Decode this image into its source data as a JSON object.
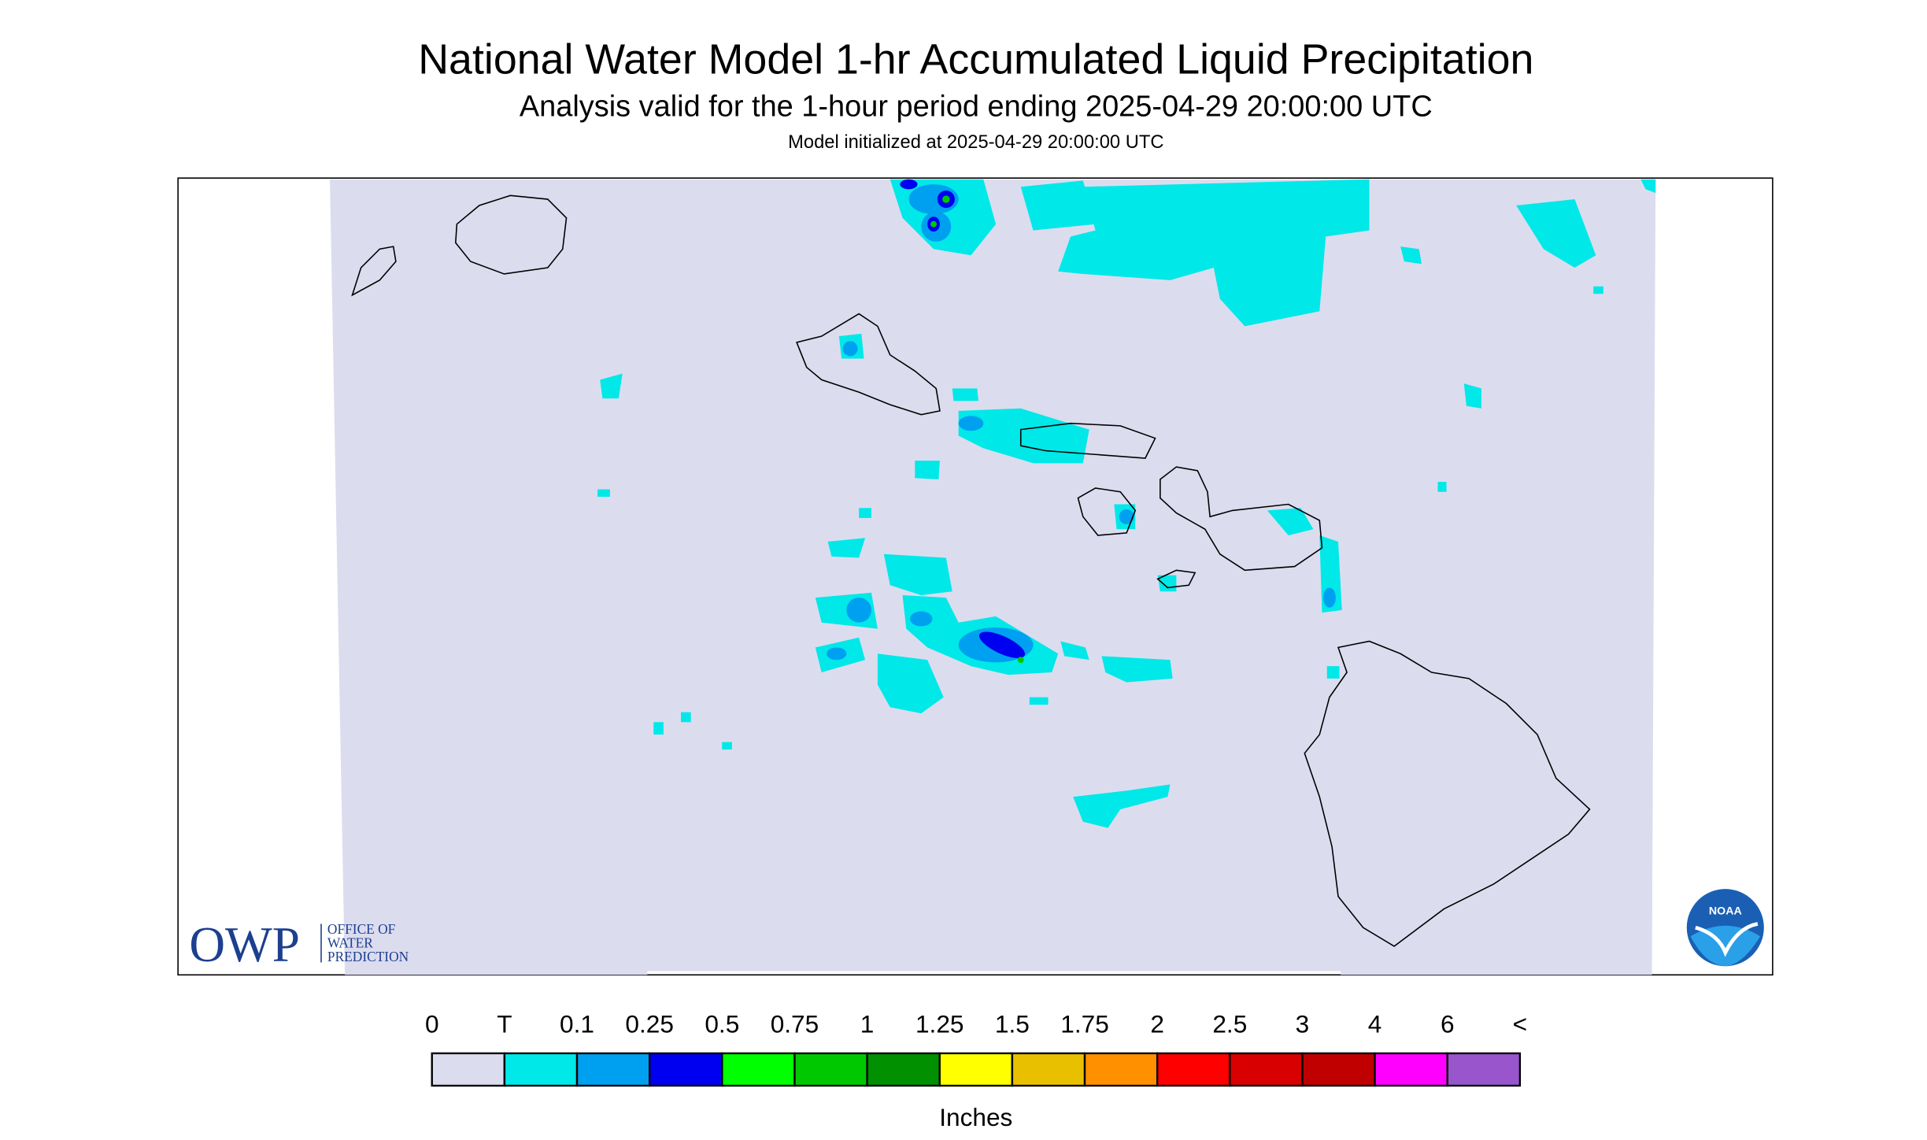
{
  "header": {
    "title": "National Water Model 1-hr Accumulated Liquid Precipitation",
    "subtitle": "Analysis valid for the 1-hour period ending 2025-04-29 20:00:00 UTC",
    "init": "Model initialized at 2025-04-29 20:00:00 UTC"
  },
  "legend": {
    "labels": [
      "0",
      "T",
      "0.1",
      "0.25",
      "0.5",
      "0.75",
      "1",
      "1.25",
      "1.5",
      "1.75",
      "2",
      "2.5",
      "3",
      "4",
      "6",
      "<"
    ],
    "colors": [
      "#dcdcef",
      "#00e8e8",
      "#00a0f0",
      "#0000f0",
      "#00ff00",
      "#00c800",
      "#009000",
      "#ffff00",
      "#e8c000",
      "#ff9000",
      "#ff0000",
      "#d80000",
      "#c00000",
      "#ff00ff",
      "#9955cc"
    ],
    "units": "Inches"
  },
  "logos": {
    "owp": "OWP",
    "owp_lines": [
      "OFFICE OF",
      "WATER",
      "PREDICTION"
    ],
    "noaa": "NOAA"
  }
}
